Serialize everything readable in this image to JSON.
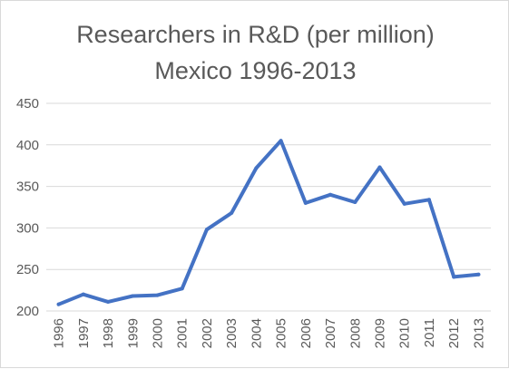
{
  "chart_data": {
    "type": "line",
    "title_lines": [
      "Researchers in R&D (per million)",
      "Mexico 1996-2013"
    ],
    "xlabel": "",
    "ylabel": "",
    "ylim": [
      200,
      450
    ],
    "y_ticks": [
      "200",
      "250",
      "300",
      "350",
      "400",
      "450"
    ],
    "grid": true,
    "legend": "none",
    "categories": [
      "1996",
      "1997",
      "1998",
      "1999",
      "2000",
      "2001",
      "2002",
      "2003",
      "2004",
      "2005",
      "2006",
      "2007",
      "2008",
      "2009",
      "2010",
      "2011",
      "2012",
      "2013"
    ],
    "series": [
      {
        "color": "#4472c4",
        "values": [
          208,
          220,
          211,
          218,
          219,
          227,
          298,
          318,
          372,
          405,
          330,
          340,
          331,
          373,
          329,
          334,
          241,
          244
        ]
      }
    ]
  }
}
